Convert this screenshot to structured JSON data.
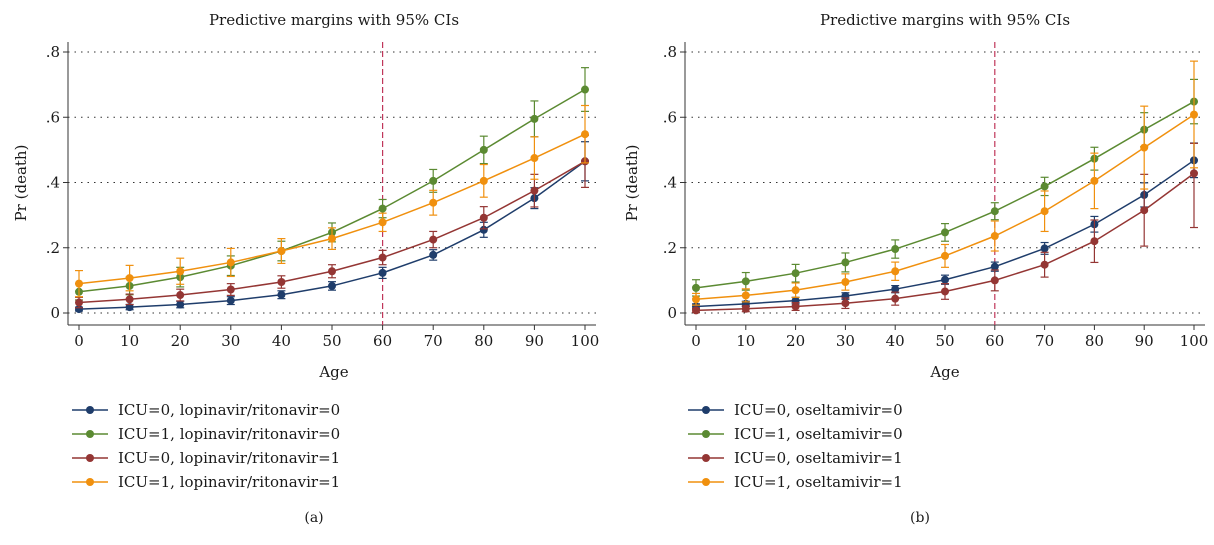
{
  "chart_data": [
    {
      "type": "line",
      "title": "Predictive margins with 95% CIs",
      "xlabel": "Age",
      "ylabel": "Pr (death)",
      "x": [
        0,
        10,
        20,
        30,
        40,
        50,
        60,
        70,
        80,
        90,
        100
      ],
      "xticks": [
        "0",
        "10",
        "20",
        "30",
        "40",
        "50",
        "60",
        "70",
        "80",
        "90",
        "100"
      ],
      "yticks": [
        0,
        0.2,
        0.4,
        0.6,
        0.8
      ],
      "ytick_labels": [
        "0",
        ".2",
        ".4",
        ".6",
        ".8"
      ],
      "xlim": [
        0,
        100
      ],
      "ylim": [
        0,
        0.8
      ],
      "grid": "horizontal dotted",
      "reference_line_x": 60,
      "legend_position": "bottom",
      "panel_label": "(a)",
      "series": [
        {
          "name": "ICU=0, lopinavir/ritonavir=0",
          "color": "#1f3d6b",
          "values": [
            0.012,
            0.018,
            0.026,
            0.038,
            0.056,
            0.083,
            0.123,
            0.178,
            0.255,
            0.352,
            0.465
          ],
          "lower": [
            0.006,
            0.01,
            0.016,
            0.026,
            0.044,
            0.07,
            0.106,
            0.162,
            0.232,
            0.32,
            0.405
          ],
          "upper": [
            0.018,
            0.026,
            0.036,
            0.05,
            0.068,
            0.096,
            0.14,
            0.194,
            0.278,
            0.384,
            0.525
          ]
        },
        {
          "name": "ICU=1, lopinavir/ritonavir=0",
          "color": "#5b8a32",
          "values": [
            0.065,
            0.083,
            0.11,
            0.145,
            0.19,
            0.247,
            0.32,
            0.405,
            0.5,
            0.595,
            0.685
          ],
          "lower": [
            0.04,
            0.056,
            0.08,
            0.115,
            0.16,
            0.218,
            0.292,
            0.37,
            0.458,
            0.54,
            0.618
          ],
          "upper": [
            0.09,
            0.11,
            0.14,
            0.175,
            0.22,
            0.276,
            0.348,
            0.44,
            0.542,
            0.65,
            0.752
          ]
        },
        {
          "name": "ICU=0, lopinavir/ritonavir=1",
          "color": "#943634",
          "values": [
            0.032,
            0.042,
            0.055,
            0.072,
            0.095,
            0.128,
            0.17,
            0.225,
            0.292,
            0.375,
            0.465
          ],
          "lower": [
            0.016,
            0.026,
            0.037,
            0.054,
            0.076,
            0.108,
            0.148,
            0.2,
            0.258,
            0.325,
            0.385
          ],
          "upper": [
            0.048,
            0.058,
            0.073,
            0.09,
            0.114,
            0.148,
            0.192,
            0.25,
            0.326,
            0.425,
            0.545
          ]
        },
        {
          "name": "ICU=1, lopinavir/ritonavir=1",
          "color": "#f0900e",
          "values": [
            0.09,
            0.107,
            0.128,
            0.155,
            0.19,
            0.228,
            0.278,
            0.338,
            0.405,
            0.475,
            0.548
          ],
          "lower": [
            0.05,
            0.068,
            0.088,
            0.112,
            0.152,
            0.195,
            0.25,
            0.3,
            0.355,
            0.41,
            0.46
          ],
          "upper": [
            0.13,
            0.146,
            0.168,
            0.198,
            0.228,
            0.261,
            0.306,
            0.376,
            0.455,
            0.54,
            0.636
          ]
        }
      ]
    },
    {
      "type": "line",
      "title": "Predictive margins with 95% CIs",
      "xlabel": "Age",
      "ylabel": "Pr (death)",
      "x": [
        0,
        10,
        20,
        30,
        40,
        50,
        60,
        70,
        80,
        90,
        100
      ],
      "xticks": [
        "0",
        "10",
        "20",
        "30",
        "40",
        "50",
        "60",
        "70",
        "80",
        "90",
        "100"
      ],
      "yticks": [
        0,
        0.2,
        0.4,
        0.6,
        0.8
      ],
      "ytick_labels": [
        "0",
        ".2",
        ".4",
        ".6",
        ".8"
      ],
      "xlim": [
        0,
        100
      ],
      "ylim": [
        0,
        0.8
      ],
      "grid": "horizontal dotted",
      "reference_line_x": 60,
      "legend_position": "bottom",
      "panel_label": "(b)",
      "series": [
        {
          "name": "ICU=0, oseltamivir=0",
          "color": "#1f3d6b",
          "values": [
            0.02,
            0.028,
            0.038,
            0.052,
            0.073,
            0.102,
            0.142,
            0.198,
            0.272,
            0.362,
            0.468
          ],
          "lower": [
            0.012,
            0.02,
            0.028,
            0.042,
            0.062,
            0.088,
            0.128,
            0.18,
            0.248,
            0.325,
            0.415
          ],
          "upper": [
            0.028,
            0.036,
            0.048,
            0.062,
            0.084,
            0.116,
            0.156,
            0.216,
            0.296,
            0.399,
            0.521
          ]
        },
        {
          "name": "ICU=1, oseltamivir=0",
          "color": "#5b8a32",
          "values": [
            0.077,
            0.097,
            0.122,
            0.155,
            0.196,
            0.247,
            0.312,
            0.388,
            0.473,
            0.562,
            0.648
          ],
          "lower": [
            0.052,
            0.07,
            0.095,
            0.126,
            0.168,
            0.22,
            0.286,
            0.36,
            0.438,
            0.51,
            0.58
          ],
          "upper": [
            0.102,
            0.124,
            0.149,
            0.184,
            0.224,
            0.274,
            0.338,
            0.416,
            0.508,
            0.614,
            0.716
          ]
        },
        {
          "name": "ICU=0, oseltamivir=1",
          "color": "#943634",
          "values": [
            0.008,
            0.013,
            0.02,
            0.03,
            0.044,
            0.066,
            0.1,
            0.148,
            0.22,
            0.315,
            0.428
          ],
          "lower": [
            0.002,
            0.004,
            0.008,
            0.014,
            0.024,
            0.042,
            0.068,
            0.11,
            0.155,
            0.205,
            0.262
          ],
          "upper": [
            0.014,
            0.022,
            0.032,
            0.046,
            0.064,
            0.09,
            0.132,
            0.186,
            0.285,
            0.425,
            0.52
          ]
        },
        {
          "name": "ICU=1, oseltamivir=1",
          "color": "#f0900e",
          "values": [
            0.042,
            0.054,
            0.07,
            0.095,
            0.128,
            0.175,
            0.236,
            0.312,
            0.405,
            0.507,
            0.608
          ],
          "lower": [
            0.024,
            0.034,
            0.048,
            0.07,
            0.1,
            0.14,
            0.19,
            0.25,
            0.32,
            0.38,
            0.445
          ],
          "upper": [
            0.06,
            0.074,
            0.092,
            0.12,
            0.156,
            0.21,
            0.282,
            0.374,
            0.49,
            0.634,
            0.772
          ]
        }
      ]
    }
  ]
}
